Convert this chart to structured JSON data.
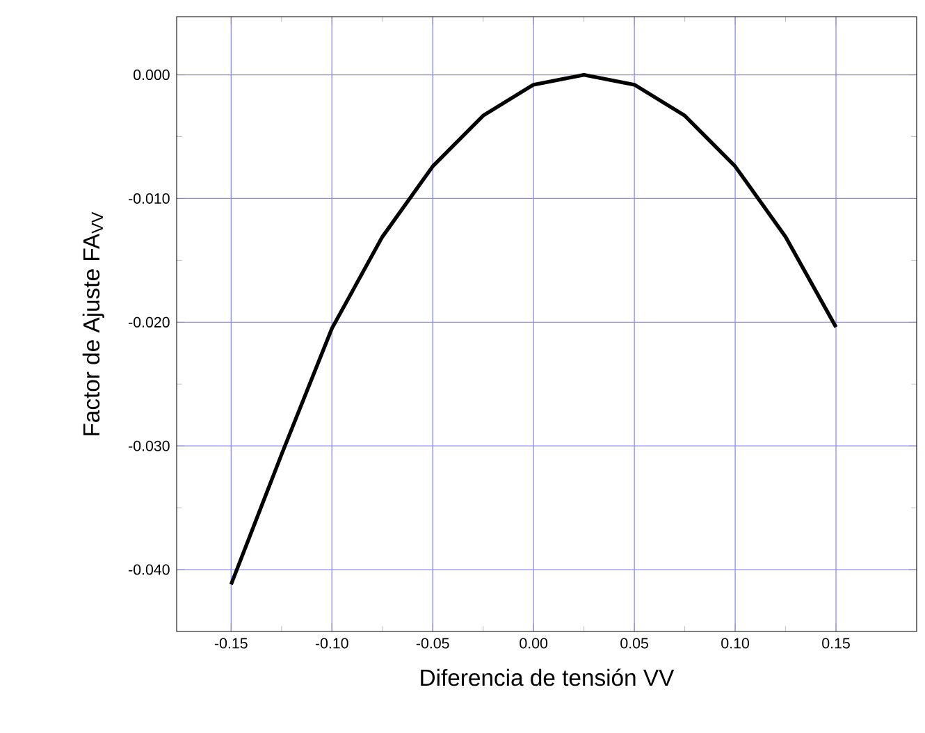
{
  "chart_data": {
    "type": "line",
    "xlabel": "Diferencia de tensión VV",
    "ylabel": "Factor de Ajuste FA$_{VV}$",
    "x": [
      -0.15,
      -0.125,
      -0.1,
      -0.075,
      -0.05,
      -0.025,
      0.0,
      0.025,
      0.05,
      0.075,
      0.1,
      0.125,
      0.15
    ],
    "series": [
      {
        "color": "#000000",
        "values": [
          -0.0412,
          -0.0307,
          -0.0205,
          -0.0131,
          -0.0074,
          -0.0033,
          -0.0008,
          0.0,
          -0.0008,
          -0.0033,
          -0.0074,
          -0.0131,
          -0.0204
        ]
      }
    ],
    "xlim": [
      -0.177,
      0.19
    ],
    "ylim": [
      -0.045,
      0.0047
    ],
    "xticks": [
      {
        "value": -0.15,
        "label": "-0.15"
      },
      {
        "value": -0.1,
        "label": "-0.10"
      },
      {
        "value": -0.05,
        "label": "-0.05"
      },
      {
        "value": 0,
        "label": "0.00"
      },
      {
        "value": 0.05,
        "label": "0.05"
      },
      {
        "value": 0.1,
        "label": "0.10"
      },
      {
        "value": 0.15,
        "label": "0.15"
      }
    ],
    "yticks": [
      {
        "value": 0,
        "label": "0.000"
      },
      {
        "value": -0.01,
        "label": "-0.010"
      },
      {
        "value": -0.02,
        "label": "-0.020"
      },
      {
        "value": -0.03,
        "label": "-0.030"
      },
      {
        "value": -0.04,
        "label": "-0.040"
      }
    ],
    "grid": true,
    "marker": "none",
    "line_style": "solid"
  }
}
